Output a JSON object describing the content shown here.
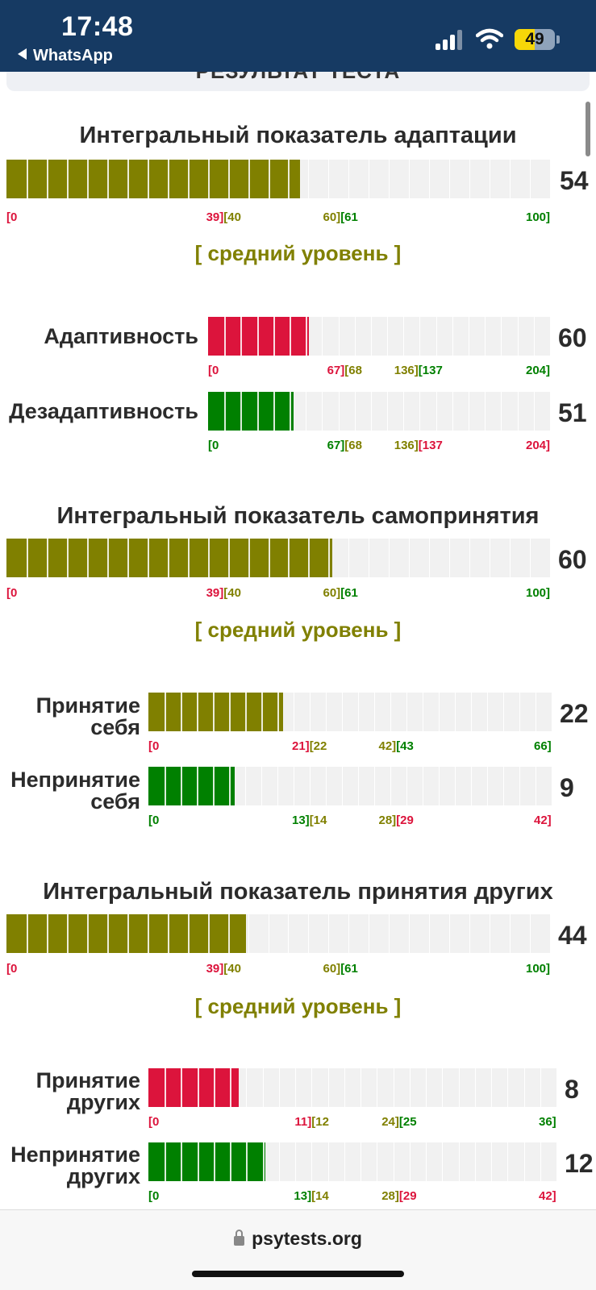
{
  "status_bar": {
    "time": "17:48",
    "back_label": "WhatsApp",
    "battery": "49"
  },
  "header": {
    "title": "РЕЗУЛЬТАТ ТЕСТА"
  },
  "colors": {
    "low": "#dc143c",
    "mid": "#808000",
    "high": "#008000",
    "track": "#f1f1f1"
  },
  "sections": [
    {
      "title": "Интегральный показатель адаптации",
      "main": {
        "value": "54",
        "fraction": 0.54,
        "ticks": [
          "[0",
          "39][40",
          "60][61",
          "100]"
        ],
        "tick_colors": [
          "low",
          "low|mid",
          "mid|high",
          "high"
        ],
        "fill_color": "mid"
      },
      "level": "[ средний уровень ]",
      "subscales": [
        {
          "label": "Адаптивность",
          "value": "60",
          "fraction": 0.294,
          "ticks": [
            "[0",
            "67][68",
            "136][137",
            "204]"
          ],
          "tick_colors": [
            "low",
            "low|mid",
            "mid|high",
            "high"
          ],
          "fill_color": "low"
        },
        {
          "label": "Дезадаптивность",
          "value": "51",
          "fraction": 0.25,
          "ticks": [
            "[0",
            "67][68",
            "136][137",
            "204]"
          ],
          "tick_colors": [
            "high",
            "high|mid",
            "mid|low",
            "low"
          ],
          "fill_color": "high"
        }
      ]
    },
    {
      "title": "Интегральный показатель самопринятия",
      "main": {
        "value": "60",
        "fraction": 0.6,
        "ticks": [
          "[0",
          "39][40",
          "60][61",
          "100]"
        ],
        "tick_colors": [
          "low",
          "low|mid",
          "mid|high",
          "high"
        ],
        "fill_color": "mid"
      },
      "level": "[ средний уровень ]",
      "subscales": [
        {
          "label": "Принятие себя",
          "value": "22",
          "fraction": 0.333,
          "ticks": [
            "[0",
            "21][22",
            "42][43",
            "66]"
          ],
          "tick_colors": [
            "low",
            "low|mid",
            "mid|high",
            "high"
          ],
          "fill_color": "mid"
        },
        {
          "label": "Непринятие себя",
          "value": "9",
          "fraction": 0.214,
          "ticks": [
            "[0",
            "13][14",
            "28][29",
            "42]"
          ],
          "tick_colors": [
            "high",
            "high|mid",
            "mid|low",
            "low"
          ],
          "fill_color": "high"
        }
      ]
    },
    {
      "title": "Интегральный показатель принятия других",
      "main": {
        "value": "44",
        "fraction": 0.44,
        "ticks": [
          "[0",
          "39][40",
          "60][61",
          "100]"
        ],
        "tick_colors": [
          "low",
          "low|mid",
          "mid|high",
          "high"
        ],
        "fill_color": "mid"
      },
      "level": "[ средний уровень ]",
      "subscales": [
        {
          "label": "Принятие других",
          "value": "8",
          "fraction": 0.222,
          "ticks": [
            "[0",
            "11][12",
            "24][25",
            "36]"
          ],
          "tick_colors": [
            "low",
            "low|mid",
            "mid|high",
            "high"
          ],
          "fill_color": "low"
        },
        {
          "label": "Непринятие других",
          "value": "12",
          "fraction": 0.286,
          "ticks": [
            "[0",
            "13][14",
            "28][29",
            "42]"
          ],
          "tick_colors": [
            "high",
            "high|mid",
            "mid|low",
            "low"
          ],
          "fill_color": "high"
        }
      ]
    }
  ],
  "browser": {
    "url": "psytests.org"
  }
}
